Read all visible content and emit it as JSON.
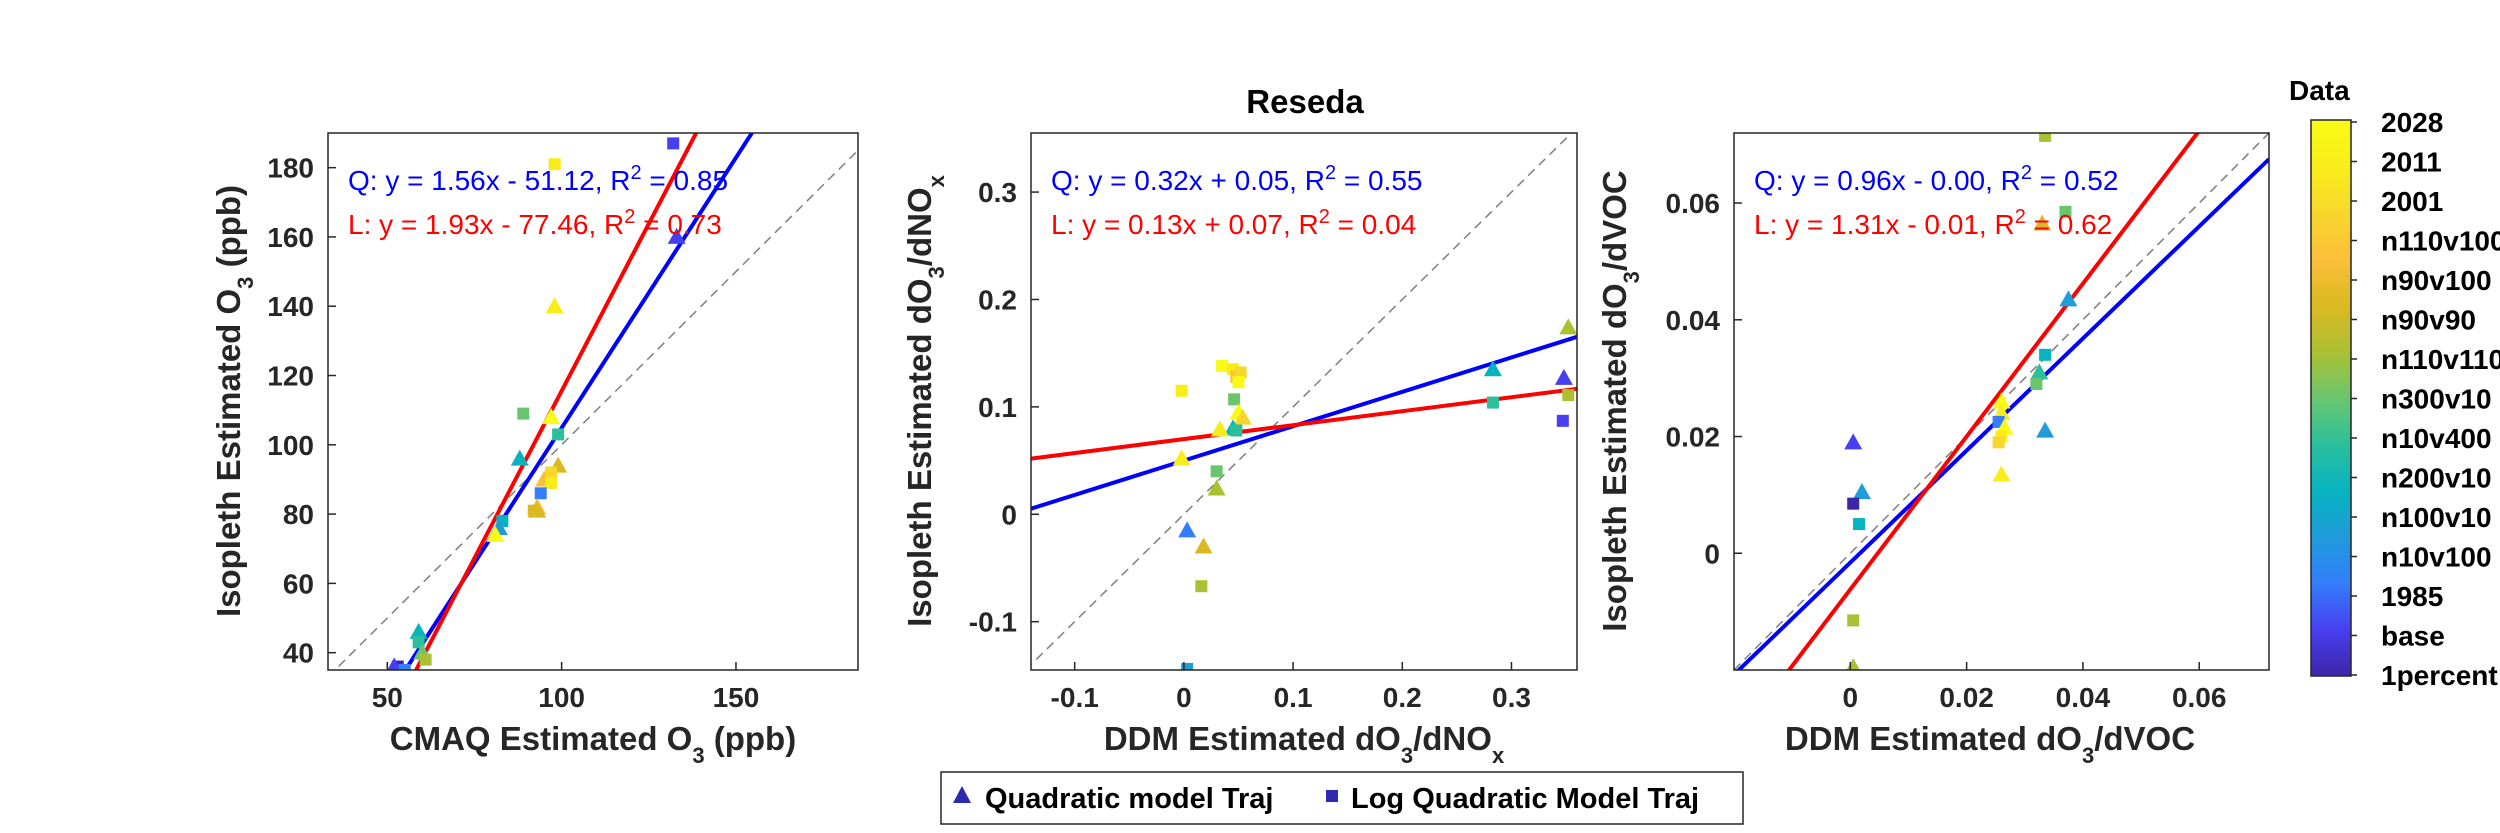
{
  "figure": {
    "background": "#ffffff"
  },
  "chart_data": [
    {
      "type": "scatter",
      "title": "",
      "xlabel": {
        "pre": "CMAQ Estimated O",
        "sub": "3",
        "post": " (ppb)"
      },
      "ylabel": {
        "pre": "Isopleth Estimated O",
        "sub": "3",
        "post": " (ppb)"
      },
      "xlim": [
        33,
        185
      ],
      "ylim": [
        35,
        190
      ],
      "xticks": [
        50,
        100,
        150
      ],
      "xticklabels": [
        "50",
        "100",
        "150"
      ],
      "yticks": [
        40,
        60,
        80,
        100,
        120,
        140,
        160,
        180
      ],
      "yticklabels": [
        "40",
        "60",
        "80",
        "100",
        "120",
        "140",
        "160",
        "180"
      ],
      "equations": [
        {
          "color": "#0000ff",
          "pre": "Q: y = 1.56x - 51.12, R",
          "sup": "2",
          "post": " = 0.85"
        },
        {
          "color": "#ff0000",
          "pre": "L: y = 1.93x - 77.46, R",
          "sup": "2",
          "post": " = 0.73"
        }
      ],
      "fits": [
        {
          "color": "#0000ff",
          "slope": 1.56,
          "intercept": -51.12
        },
        {
          "color": "#ff0000",
          "slope": 1.93,
          "intercept": -77.46
        }
      ],
      "points": [
        {
          "x": 132,
          "y": 187,
          "m": "square",
          "c": 1
        },
        {
          "x": 133,
          "y": 160,
          "m": "triangle",
          "c": 1
        },
        {
          "x": 98,
          "y": 181,
          "m": "square",
          "c": 11
        },
        {
          "x": 98,
          "y": 140,
          "m": "triangle",
          "c": 11
        },
        {
          "x": 89,
          "y": 109,
          "m": "square",
          "c": 6
        },
        {
          "x": 97,
          "y": 108,
          "m": "triangle",
          "c": 12
        },
        {
          "x": 99,
          "y": 103,
          "m": "square",
          "c": 5
        },
        {
          "x": 88,
          "y": 96,
          "m": "triangle",
          "c": 4
        },
        {
          "x": 99,
          "y": 94,
          "m": "triangle",
          "c": 8
        },
        {
          "x": 97,
          "y": 92,
          "m": "square",
          "c": 10
        },
        {
          "x": 95,
          "y": 90,
          "m": "triangle",
          "c": 9
        },
        {
          "x": 97,
          "y": 89,
          "m": "square",
          "c": 11
        },
        {
          "x": 94,
          "y": 86,
          "m": "square",
          "c": 2
        },
        {
          "x": 93,
          "y": 82,
          "m": "triangle",
          "c": 9
        },
        {
          "x": 92,
          "y": 81,
          "m": "square",
          "c": 8
        },
        {
          "x": 93,
          "y": 81,
          "m": "triangle",
          "c": 8
        },
        {
          "x": 83,
          "y": 78,
          "m": "square",
          "c": 4
        },
        {
          "x": 82,
          "y": 76,
          "m": "triangle",
          "c": 3
        },
        {
          "x": 81,
          "y": 74,
          "m": "triangle",
          "c": 12
        },
        {
          "x": 59,
          "y": 46,
          "m": "triangle",
          "c": 4
        },
        {
          "x": 59,
          "y": 43,
          "m": "square",
          "c": 5
        },
        {
          "x": 60,
          "y": 40,
          "m": "triangle",
          "c": 6
        },
        {
          "x": 61,
          "y": 38,
          "m": "square",
          "c": 7
        },
        {
          "x": 53,
          "y": 36,
          "m": "square",
          "c": 0
        },
        {
          "x": 52,
          "y": 36,
          "m": "triangle",
          "c": 1
        },
        {
          "x": 55,
          "y": 35,
          "m": "square",
          "c": 2
        }
      ]
    },
    {
      "type": "scatter",
      "title": "Reseda",
      "xlabel": {
        "pre": "DDM Estimated dO",
        "sub": "3",
        "mid": "/dNO",
        "sub2": "x",
        "post": ""
      },
      "ylabel": {
        "pre": "Isopleth Estimated dO",
        "sub": "3",
        "mid": "/dNO",
        "sub2": "x",
        "post": ""
      },
      "xlim": [
        -0.14,
        0.36
      ],
      "ylim": [
        -0.145,
        0.355
      ],
      "xticks": [
        -0.1,
        0,
        0.1,
        0.2,
        0.3
      ],
      "xticklabels": [
        "-0.1",
        "0",
        "0.1",
        "0.2",
        "0.3"
      ],
      "yticks": [
        -0.1,
        0,
        0.1,
        0.2,
        0.3
      ],
      "yticklabels": [
        "-0.1",
        "0",
        "0.1",
        "0.2",
        "0.3"
      ],
      "equations": [
        {
          "color": "#0000ff",
          "pre": "Q: y = 0.32x + 0.05, R",
          "sup": "2",
          "post": " = 0.55"
        },
        {
          "color": "#ff0000",
          "pre": "L: y = 0.13x + 0.07, R",
          "sup": "2",
          "post": " = 0.04"
        }
      ],
      "fits": [
        {
          "color": "#0000ff",
          "slope": 0.32,
          "intercept": 0.05
        },
        {
          "color": "#ff0000",
          "slope": 0.13,
          "intercept": 0.07
        }
      ],
      "points": [
        {
          "x": 0.035,
          "y": 0.138,
          "m": "square",
          "c": 12
        },
        {
          "x": 0.045,
          "y": 0.135,
          "m": "square",
          "c": 11
        },
        {
          "x": 0.048,
          "y": 0.128,
          "m": "square",
          "c": 9
        },
        {
          "x": 0.052,
          "y": 0.132,
          "m": "square",
          "c": 10
        },
        {
          "x": 0.05,
          "y": 0.123,
          "m": "square",
          "c": 12
        },
        {
          "x": -0.002,
          "y": 0.115,
          "m": "square",
          "c": 11
        },
        {
          "x": 0.046,
          "y": 0.107,
          "m": "square",
          "c": 6
        },
        {
          "x": 0.05,
          "y": 0.095,
          "m": "triangle",
          "c": 12
        },
        {
          "x": 0.054,
          "y": 0.09,
          "m": "triangle",
          "c": 10
        },
        {
          "x": 0.045,
          "y": 0.08,
          "m": "triangle",
          "c": 4
        },
        {
          "x": 0.048,
          "y": 0.078,
          "m": "square",
          "c": 5
        },
        {
          "x": 0.033,
          "y": 0.079,
          "m": "triangle",
          "c": 11
        },
        {
          "x": -0.002,
          "y": 0.052,
          "m": "triangle",
          "c": 11
        },
        {
          "x": 0.03,
          "y": 0.04,
          "m": "square",
          "c": 6
        },
        {
          "x": 0.03,
          "y": 0.024,
          "m": "triangle",
          "c": 7
        },
        {
          "x": 0.003,
          "y": -0.015,
          "m": "triangle",
          "c": 2
        },
        {
          "x": 0.018,
          "y": -0.03,
          "m": "triangle",
          "c": 8
        },
        {
          "x": 0.016,
          "y": -0.067,
          "m": "square",
          "c": 7
        },
        {
          "x": 0.003,
          "y": -0.144,
          "m": "square",
          "c": 3
        },
        {
          "x": 0.283,
          "y": 0.135,
          "m": "triangle",
          "c": 4
        },
        {
          "x": 0.283,
          "y": 0.104,
          "m": "square",
          "c": 5
        },
        {
          "x": 0.352,
          "y": 0.174,
          "m": "triangle",
          "c": 7
        },
        {
          "x": 0.348,
          "y": 0.127,
          "m": "triangle",
          "c": 1
        },
        {
          "x": 0.352,
          "y": 0.111,
          "m": "square",
          "c": 7
        },
        {
          "x": 0.347,
          "y": 0.087,
          "m": "square",
          "c": 1
        }
      ]
    },
    {
      "type": "scatter",
      "title": "",
      "xlabel": {
        "pre": "DDM Estimated dO",
        "sub": "3",
        "mid": "/dVOC",
        "post": ""
      },
      "ylabel": {
        "pre": "Isopleth Estimated dO",
        "sub": "3",
        "mid": "/dVOC",
        "post": ""
      },
      "xlim": [
        -0.02,
        0.072
      ],
      "ylim": [
        -0.02,
        0.072
      ],
      "xticks": [
        0,
        0.02,
        0.04,
        0.06
      ],
      "xticklabels": [
        "0",
        "0.02",
        "0.04",
        "0.06"
      ],
      "yticks": [
        0,
        0.02,
        0.04,
        0.06
      ],
      "yticklabels": [
        "0",
        "0.02",
        "0.04",
        "0.06"
      ],
      "equations": [
        {
          "color": "#0000ff",
          "pre": "Q: y = 0.96x - 0.00, R",
          "sup": "2",
          "post": " = 0.52"
        },
        {
          "color": "#ff0000",
          "pre": "L: y = 1.31x - 0.01, R",
          "sup": "2",
          "post": " = 0.62"
        }
      ],
      "fits": [
        {
          "color": "#0000ff",
          "slope": 0.96,
          "intercept": -0.0016
        },
        {
          "color": "#ff0000",
          "slope": 1.31,
          "intercept": -0.0062
        }
      ],
      "points": [
        {
          "x": 0.0335,
          "y": 0.0715,
          "m": "square",
          "c": 7
        },
        {
          "x": 0.037,
          "y": 0.0585,
          "m": "square",
          "c": 6
        },
        {
          "x": 0.033,
          "y": 0.0565,
          "m": "triangle",
          "c": 8
        },
        {
          "x": 0.0375,
          "y": 0.0435,
          "m": "triangle",
          "c": 3
        },
        {
          "x": 0.0335,
          "y": 0.034,
          "m": "square",
          "c": 4
        },
        {
          "x": 0.0325,
          "y": 0.031,
          "m": "triangle",
          "c": 5
        },
        {
          "x": 0.032,
          "y": 0.029,
          "m": "square",
          "c": 6
        },
        {
          "x": 0.0335,
          "y": 0.021,
          "m": "triangle",
          "c": 3
        },
        {
          "x": 0.026,
          "y": 0.026,
          "m": "triangle",
          "c": 12
        },
        {
          "x": 0.026,
          "y": 0.024,
          "m": "triangle",
          "c": 11
        },
        {
          "x": 0.0255,
          "y": 0.0225,
          "m": "square",
          "c": 2
        },
        {
          "x": 0.0265,
          "y": 0.0215,
          "m": "triangle",
          "c": 12
        },
        {
          "x": 0.026,
          "y": 0.02,
          "m": "square",
          "c": 11
        },
        {
          "x": 0.0255,
          "y": 0.019,
          "m": "square",
          "c": 10
        },
        {
          "x": 0.026,
          "y": 0.0135,
          "m": "triangle",
          "c": 11
        },
        {
          "x": 0.0005,
          "y": 0.019,
          "m": "triangle",
          "c": 1
        },
        {
          "x": 0.002,
          "y": 0.0105,
          "m": "triangle",
          "c": 3
        },
        {
          "x": 0.0005,
          "y": 0.0085,
          "m": "square",
          "c": 0
        },
        {
          "x": 0.0015,
          "y": 0.005,
          "m": "square",
          "c": 4
        },
        {
          "x": 0.0005,
          "y": -0.0115,
          "m": "square",
          "c": 7
        },
        {
          "x": 0.0005,
          "y": -0.0195,
          "m": "triangle",
          "c": 7
        }
      ]
    }
  ],
  "legend": [
    {
      "marker": "triangle",
      "label": "Quadratic model Traj"
    },
    {
      "marker": "square",
      "label": "Log Quadratic Model Traj"
    }
  ],
  "colorbar": {
    "title": "Data",
    "labels": [
      "2028",
      "2011",
      "2001",
      "n110v100",
      "n90v100",
      "n90v90",
      "n110v110",
      "n300v10",
      "n10v400",
      "n200v10",
      "n100v10",
      "n10v100",
      "1985",
      "base",
      "1percent"
    ],
    "colors": [
      "#3e26a8",
      "#4740f1",
      "#347efd",
      "#1f9cda",
      "#07b3c0",
      "#2bbf9c",
      "#6ac66e",
      "#abc032",
      "#dbb922",
      "#fcbf3a",
      "#f7d72c",
      "#f9ed19",
      "#f9fb15"
    ]
  },
  "identity_line_color": "#7f7f7f"
}
